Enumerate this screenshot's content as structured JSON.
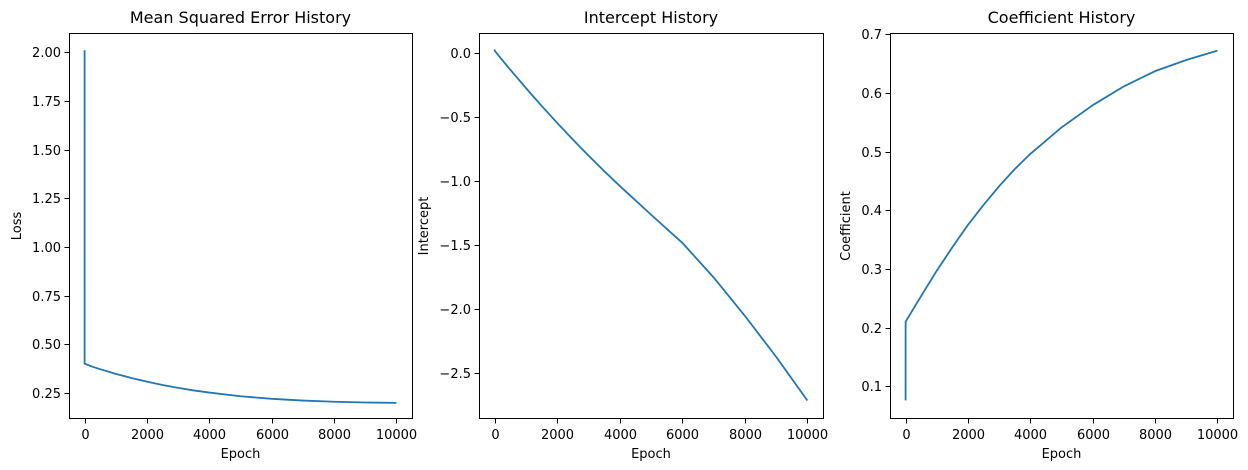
{
  "chart_data": [
    {
      "type": "line",
      "title": "Mean Squared Error History",
      "xlabel": "Epoch",
      "ylabel": "Loss",
      "xlim": [
        -500,
        10500
      ],
      "ylim": [
        0.1214,
        2.0986
      ],
      "xticks": [
        0,
        2000,
        4000,
        6000,
        8000,
        10000
      ],
      "xtick_labels": [
        "0",
        "2000",
        "4000",
        "6000",
        "8000",
        "10000"
      ],
      "yticks": [
        0.25,
        0.5,
        0.75,
        1.0,
        1.25,
        1.5,
        1.75,
        2.0
      ],
      "ytick_labels": [
        "0.25",
        "0.50",
        "0.75",
        "1.00",
        "1.25",
        "1.50",
        "1.75",
        "2.00"
      ],
      "grid": false,
      "series": [
        {
          "color": "#1f77b4",
          "x": [
            0,
            1,
            250,
            500,
            1000,
            1500,
            2000,
            2500,
            3000,
            3500,
            4000,
            5000,
            6000,
            7000,
            8000,
            9000,
            10000
          ],
          "y": [
            2.01,
            0.4,
            0.385,
            0.372,
            0.348,
            0.327,
            0.308,
            0.291,
            0.276,
            0.263,
            0.252,
            0.233,
            0.22,
            0.211,
            0.205,
            0.201,
            0.199
          ]
        }
      ]
    },
    {
      "type": "line",
      "title": "Intercept History",
      "xlabel": "Epoch",
      "ylabel": "Intercept",
      "xlim": [
        -500,
        10500
      ],
      "ylim": [
        -2.8485,
        0.1585
      ],
      "xticks": [
        0,
        2000,
        4000,
        6000,
        8000,
        10000
      ],
      "xtick_labels": [
        "0",
        "2000",
        "4000",
        "6000",
        "8000",
        "10000"
      ],
      "yticks": [
        -2.5,
        -2.0,
        -1.5,
        -1.0,
        -0.5,
        0.0
      ],
      "ytick_labels": [
        "−2.5",
        "−2.0",
        "−1.5",
        "−1.0",
        "−0.5",
        "0.0"
      ],
      "grid": false,
      "series": [
        {
          "color": "#1f77b4",
          "x": [
            0,
            1,
            250,
            500,
            1000,
            1500,
            2000,
            2500,
            3000,
            3500,
            4000,
            5000,
            6000,
            7000,
            8000,
            9000,
            10000
          ],
          "y": [
            0.03,
            0.02,
            -0.055,
            -0.128,
            -0.271,
            -0.41,
            -0.544,
            -0.673,
            -0.798,
            -0.919,
            -1.036,
            -1.26,
            -1.48,
            -1.75,
            -2.05,
            -2.37,
            -2.712
          ]
        }
      ]
    },
    {
      "type": "line",
      "title": "Coefficient History",
      "xlabel": "Epoch",
      "ylabel": "Coefficient",
      "xlim": [
        -500,
        10500
      ],
      "ylim": [
        0.046,
        0.702
      ],
      "xticks": [
        0,
        2000,
        4000,
        6000,
        8000,
        10000
      ],
      "xtick_labels": [
        "0",
        "2000",
        "4000",
        "6000",
        "8000",
        "10000"
      ],
      "yticks": [
        0.1,
        0.2,
        0.3,
        0.4,
        0.5,
        0.6,
        0.7
      ],
      "ytick_labels": [
        "0.1",
        "0.2",
        "0.3",
        "0.4",
        "0.5",
        "0.6",
        "0.7"
      ],
      "grid": false,
      "series": [
        {
          "color": "#1f77b4",
          "x": [
            0,
            1,
            250,
            500,
            1000,
            1500,
            2000,
            2500,
            3000,
            3500,
            4000,
            5000,
            6000,
            7000,
            8000,
            9000,
            10000
          ],
          "y": [
            0.076,
            0.21,
            0.232,
            0.254,
            0.297,
            0.337,
            0.375,
            0.409,
            0.441,
            0.47,
            0.496,
            0.541,
            0.579,
            0.611,
            0.637,
            0.656,
            0.672
          ]
        }
      ]
    }
  ]
}
